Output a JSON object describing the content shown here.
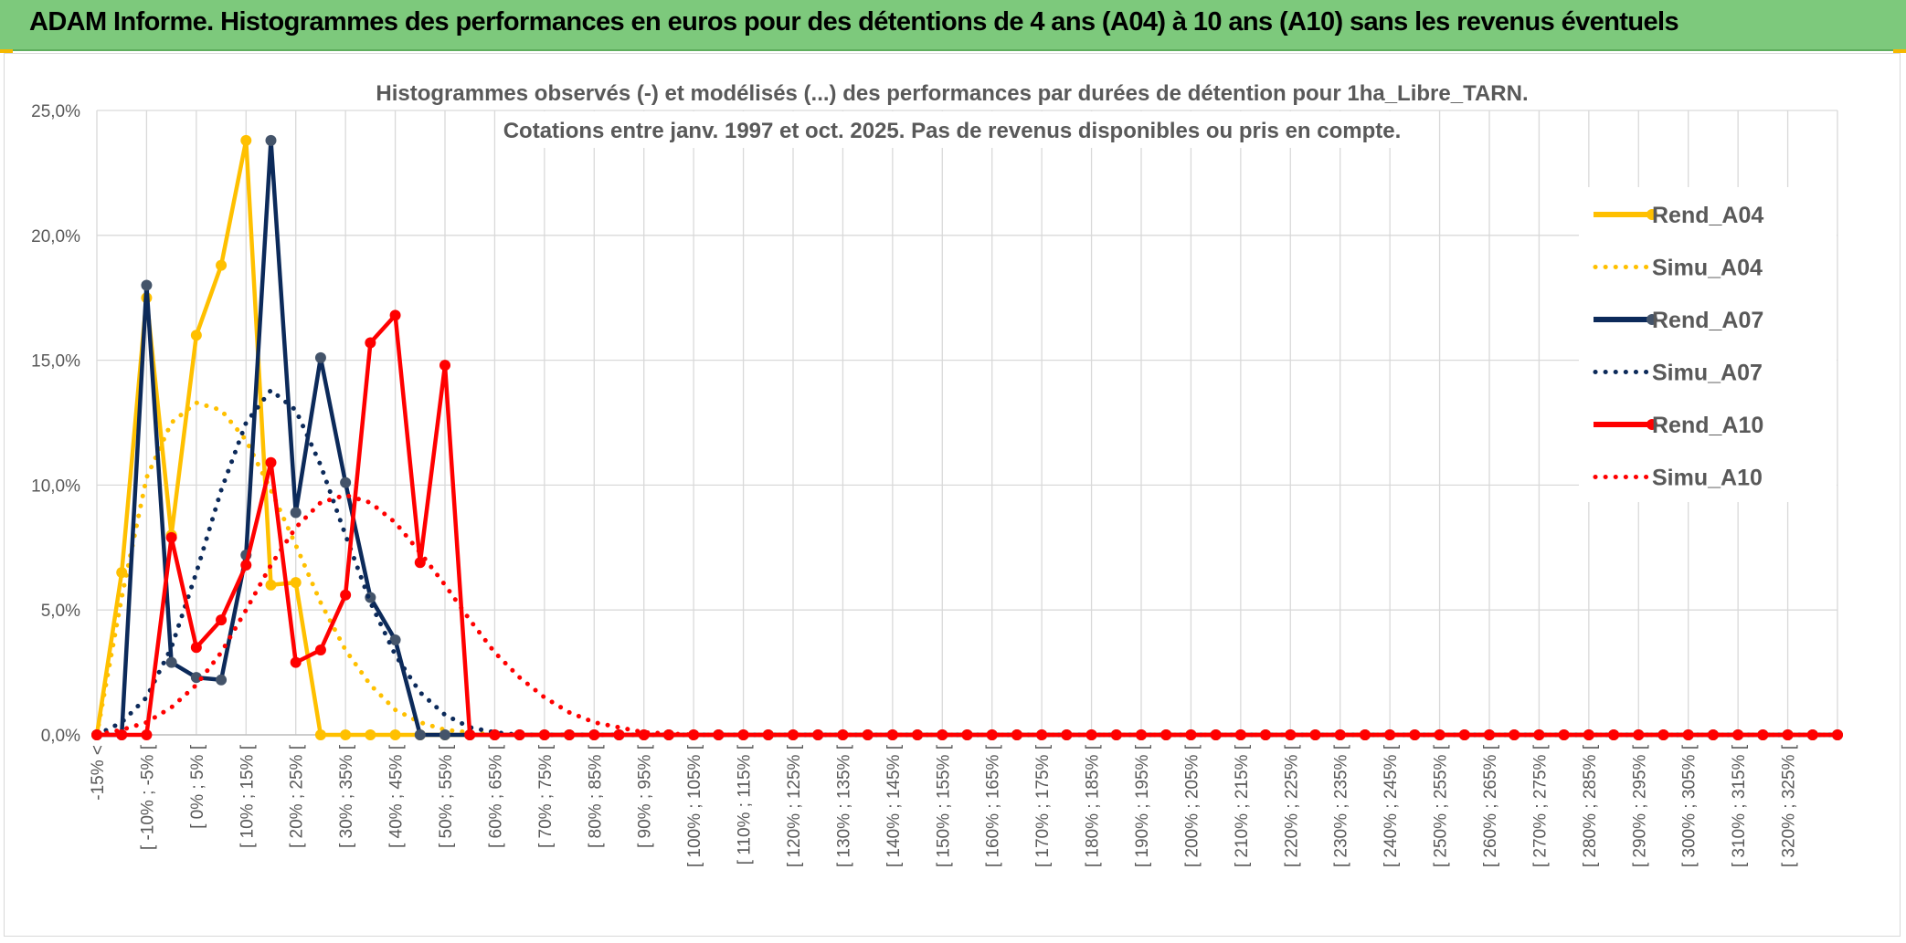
{
  "header": {
    "title": "ADAM Informe. Histogrammes des performances en euros pour des détentions de 4 ans (A04) à 10 ans (A10) sans les revenus éventuels"
  },
  "colors": {
    "header_bg": "#7dc97c",
    "A04": "#ffc000",
    "A07": "#0c2a5a",
    "A10": "#ff0000"
  },
  "chart_data": {
    "type": "line",
    "title_lines": [
      "Histogrammes observés (-) et modélisés (...) des performances par durées de détention pour 1ha_Libre_TARN.",
      "Cotations entre janv. 1997 et oct. 2025. Pas de revenus disponibles ou pris en compte."
    ],
    "y_ticks": [
      "0,0%",
      "5,0%",
      "10,0%",
      "15,0%",
      "20,0%",
      "25,0%"
    ],
    "ylim": [
      0,
      25
    ],
    "grid": true,
    "legend_position": "right",
    "x_tick_labels": [
      "-15% <",
      "[ -10% ; -5% [",
      "[ 0% ; 5% [",
      "[ 10% ; 15% [",
      "[ 20% ; 25% [",
      "[ 30% ; 35% [",
      "[ 40% ; 45% [",
      "[ 50% ; 55% [",
      "[ 60% ; 65% [",
      "[ 70% ; 75% [",
      "[ 80% ; 85% [",
      "[ 90% ; 95% [",
      "[ 100% ; 105% [",
      "[ 110% ; 115% [",
      "[ 120% ; 125% [",
      "[ 130% ; 135% [",
      "[ 140% ; 145% [",
      "[ 150% ; 155% [",
      "[ 160% ; 165% [",
      "[ 170% ; 175% [",
      "[ 180% ; 185% [",
      "[ 190% ; 195% [",
      "[ 200% ; 205% [",
      "[ 210% ; 215% [",
      "[ 220% ; 225% [",
      "[ 230% ; 235% [",
      "[ 240% ; 245% [",
      "[ 250% ; 255% [",
      "[ 260% ; 265% [",
      "[ 270% ; 275% [",
      "[ 280% ; 285% [",
      "[ 290% ; 295% [",
      "[ 300% ; 305% [",
      "[ 310% ; 315% [",
      "[ 320% ; 325% ["
    ],
    "n_categories": 71,
    "series": [
      {
        "name": "Rend_A04",
        "style": "solid",
        "color": "#ffc000",
        "values": [
          0,
          6.5,
          17.5,
          8,
          16,
          18.8,
          23.8,
          6,
          6.1,
          0,
          0,
          0,
          0,
          0,
          0,
          0,
          0,
          0,
          0,
          0,
          0,
          0,
          0,
          0,
          0,
          0,
          0,
          0,
          0,
          0,
          0,
          0,
          0,
          0,
          0,
          0,
          0,
          0,
          0,
          0,
          0,
          0,
          0,
          0,
          0,
          0,
          0,
          0,
          0,
          0,
          0,
          0,
          0,
          0,
          0,
          0,
          0,
          0,
          0,
          0,
          0,
          0,
          0,
          0,
          0,
          0,
          0,
          0,
          0,
          0,
          0
        ]
      },
      {
        "name": "Simu_A04",
        "style": "dotted",
        "color": "#ffc000",
        "values": [
          0,
          5.5,
          10.3,
          12.5,
          13.3,
          13,
          11.8,
          9.8,
          7.6,
          5.3,
          3.4,
          2,
          1,
          0.5,
          0.2,
          0.1,
          0,
          0,
          0,
          0,
          0,
          0,
          0,
          0,
          0,
          0,
          0,
          0,
          0,
          0,
          0,
          0,
          0,
          0,
          0,
          0,
          0,
          0,
          0,
          0,
          0,
          0,
          0,
          0,
          0,
          0,
          0,
          0,
          0,
          0,
          0,
          0,
          0,
          0,
          0,
          0,
          0,
          0,
          0,
          0,
          0,
          0,
          0,
          0,
          0,
          0,
          0,
          0,
          0,
          0,
          0
        ]
      },
      {
        "name": "Rend_A07",
        "style": "solid",
        "color": "#0c2a5a",
        "values": [
          0,
          0,
          18,
          2.9,
          2.3,
          2.2,
          7.2,
          23.8,
          8.9,
          15.1,
          10.1,
          5.5,
          3.8,
          0,
          0,
          0,
          0,
          0,
          0,
          0,
          0,
          0,
          0,
          0,
          0,
          0,
          0,
          0,
          0,
          0,
          0,
          0,
          0,
          0,
          0,
          0,
          0,
          0,
          0,
          0,
          0,
          0,
          0,
          0,
          0,
          0,
          0,
          0,
          0,
          0,
          0,
          0,
          0,
          0,
          0,
          0,
          0,
          0,
          0,
          0,
          0,
          0,
          0,
          0,
          0,
          0,
          0,
          0,
          0,
          0,
          0
        ]
      },
      {
        "name": "Simu_A07",
        "style": "dotted",
        "color": "#0c2a5a",
        "values": [
          0,
          0.5,
          1.5,
          3.5,
          6.5,
          9.8,
          12.5,
          13.8,
          13,
          10.8,
          8,
          5.3,
          3.2,
          1.7,
          0.8,
          0.3,
          0.1,
          0,
          0,
          0,
          0,
          0,
          0,
          0,
          0,
          0,
          0,
          0,
          0,
          0,
          0,
          0,
          0,
          0,
          0,
          0,
          0,
          0,
          0,
          0,
          0,
          0,
          0,
          0,
          0,
          0,
          0,
          0,
          0,
          0,
          0,
          0,
          0,
          0,
          0,
          0,
          0,
          0,
          0,
          0,
          0,
          0,
          0,
          0,
          0,
          0,
          0,
          0,
          0,
          0,
          0
        ]
      },
      {
        "name": "Rend_A10",
        "style": "solid",
        "color": "#ff0000",
        "values": [
          0,
          0,
          0,
          7.9,
          3.5,
          4.6,
          6.8,
          10.9,
          2.9,
          3.4,
          5.6,
          15.7,
          16.8,
          6.9,
          14.8,
          0,
          0,
          0,
          0,
          0,
          0,
          0,
          0,
          0,
          0,
          0,
          0,
          0,
          0,
          0,
          0,
          0,
          0,
          0,
          0,
          0,
          0,
          0,
          0,
          0,
          0,
          0,
          0,
          0,
          0,
          0,
          0,
          0,
          0,
          0,
          0,
          0,
          0,
          0,
          0,
          0,
          0,
          0,
          0,
          0,
          0,
          0,
          0,
          0,
          0,
          0,
          0,
          0,
          0,
          0,
          0
        ]
      },
      {
        "name": "Simu_A10",
        "style": "dotted",
        "color": "#ff0000",
        "values": [
          0,
          0.2,
          0.5,
          1.1,
          2,
          3.3,
          5,
          6.8,
          8.3,
          9.3,
          9.6,
          9.3,
          8.5,
          7.3,
          6,
          4.6,
          3.3,
          2.3,
          1.5,
          0.9,
          0.5,
          0.3,
          0.1,
          0.05,
          0,
          0,
          0,
          0,
          0,
          0,
          0,
          0,
          0,
          0,
          0,
          0,
          0,
          0,
          0,
          0,
          0,
          0,
          0,
          0,
          0,
          0,
          0,
          0,
          0,
          0,
          0,
          0,
          0,
          0,
          0,
          0,
          0,
          0,
          0,
          0,
          0,
          0,
          0,
          0,
          0,
          0,
          0,
          0,
          0,
          0,
          0
        ]
      }
    ]
  }
}
